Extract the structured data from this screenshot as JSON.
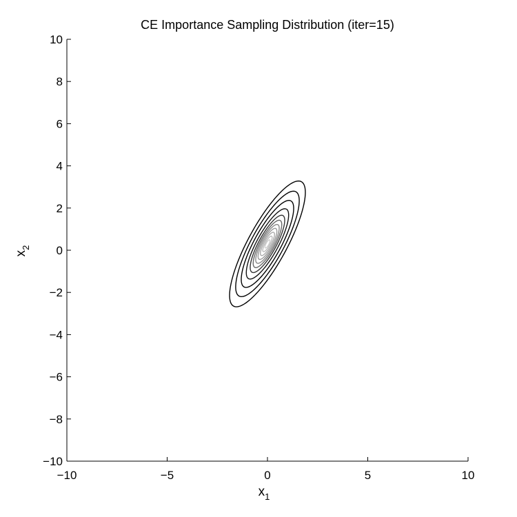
{
  "chart_data": {
    "type": "contour",
    "title": "CE Importance Sampling Distribution (iter=15)",
    "xlabel": {
      "base": "x",
      "subscript": "1"
    },
    "ylabel": {
      "base": "x",
      "subscript": "2"
    },
    "xlim": [
      -10,
      10
    ],
    "ylim": [
      -10,
      10
    ],
    "xticks": [
      -10,
      -5,
      0,
      5,
      10
    ],
    "yticks": [
      -10,
      -8,
      -6,
      -4,
      -2,
      0,
      2,
      4,
      6,
      8,
      10
    ],
    "grid": false,
    "distribution": {
      "mean": [
        0,
        0.3
      ],
      "major_axis_angle_deg": 60
    },
    "contours": [
      {
        "semi_major": 3.4,
        "semi_minor": 0.95,
        "color": "#000000"
      },
      {
        "semi_major": 2.85,
        "semi_minor": 0.8,
        "color": "#000000"
      },
      {
        "semi_major": 2.35,
        "semi_minor": 0.66,
        "color": "#000000"
      },
      {
        "semi_major": 1.9,
        "semi_minor": 0.53,
        "color": "#111111"
      },
      {
        "semi_major": 1.55,
        "semi_minor": 0.43,
        "color": "#333333"
      },
      {
        "semi_major": 1.28,
        "semi_minor": 0.36,
        "color": "#666666"
      },
      {
        "semi_major": 1.05,
        "semi_minor": 0.3,
        "color": "#888888"
      },
      {
        "semi_major": 0.84,
        "semi_minor": 0.24,
        "color": "#999999"
      },
      {
        "semi_major": 0.63,
        "semi_minor": 0.18,
        "color": "#aaaaaa"
      },
      {
        "semi_major": 0.42,
        "semi_minor": 0.12,
        "color": "#bbbbbb"
      },
      {
        "semi_major": 0.22,
        "semi_minor": 0.07,
        "color": "#cccccc"
      }
    ]
  }
}
